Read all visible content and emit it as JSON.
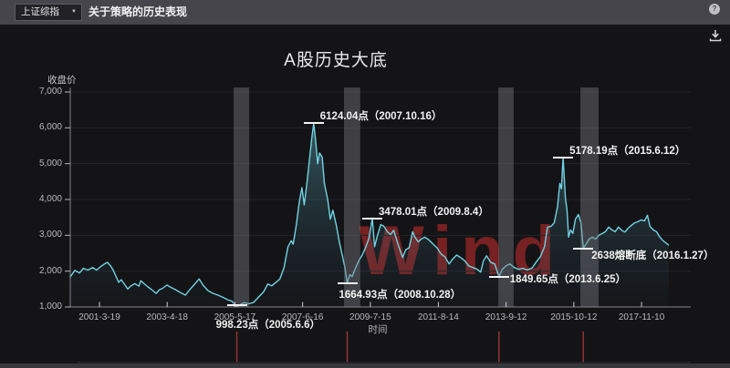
{
  "header": {
    "index_selector": {
      "value": "上证综指",
      "caret": "▼"
    },
    "title": "关于策略的历史表现",
    "help_label": "?"
  },
  "panel": {
    "title": "A股历史大底"
  },
  "chart_data": {
    "type": "line",
    "title": "A股历史大底",
    "ylabel": "收盘价",
    "xlabel": "时间",
    "ylim": [
      1000,
      7000
    ],
    "grid": "horizontal",
    "watermark": "Wind",
    "y_ticks": [
      "1,000",
      "2,000",
      "3,000",
      "4,000",
      "5,000",
      "6,000",
      "7,000"
    ],
    "x_ticks": [
      {
        "label": "2001-3-19",
        "t": 2001.21
      },
      {
        "label": "2003-4-18",
        "t": 2003.29
      },
      {
        "label": "2005-5-17",
        "t": 2005.37
      },
      {
        "label": "2007-6-16",
        "t": 2007.45
      },
      {
        "label": "2009-7-15",
        "t": 2009.53
      },
      {
        "label": "2011-8-14",
        "t": 2011.62
      },
      {
        "label": "2013-9-12",
        "t": 2013.7
      },
      {
        "label": "2015-10-12",
        "t": 2015.78
      },
      {
        "label": "2017-11-10",
        "t": 2017.86
      }
    ],
    "series": [
      {
        "name": "上证综指",
        "color": "#72d2e2",
        "points": [
          [
            2000.3,
            1820
          ],
          [
            2000.45,
            2020
          ],
          [
            2000.6,
            1950
          ],
          [
            2000.72,
            2080
          ],
          [
            2000.85,
            2030
          ],
          [
            2001.0,
            2100
          ],
          [
            2001.12,
            2030
          ],
          [
            2001.25,
            2130
          ],
          [
            2001.38,
            2210
          ],
          [
            2001.45,
            2245
          ],
          [
            2001.55,
            2150
          ],
          [
            2001.62,
            2050
          ],
          [
            2001.72,
            1850
          ],
          [
            2001.8,
            1690
          ],
          [
            2001.88,
            1760
          ],
          [
            2001.97,
            1646
          ],
          [
            2002.08,
            1500
          ],
          [
            2002.18,
            1590
          ],
          [
            2002.3,
            1650
          ],
          [
            2002.42,
            1580
          ],
          [
            2002.48,
            1732
          ],
          [
            2002.58,
            1650
          ],
          [
            2002.7,
            1560
          ],
          [
            2002.82,
            1480
          ],
          [
            2002.95,
            1380
          ],
          [
            2003.05,
            1480
          ],
          [
            2003.15,
            1520
          ],
          [
            2003.28,
            1610
          ],
          [
            2003.4,
            1550
          ],
          [
            2003.55,
            1480
          ],
          [
            2003.7,
            1400
          ],
          [
            2003.85,
            1330
          ],
          [
            2003.95,
            1450
          ],
          [
            2004.1,
            1600
          ],
          [
            2004.27,
            1780
          ],
          [
            2004.4,
            1600
          ],
          [
            2004.55,
            1450
          ],
          [
            2004.7,
            1380
          ],
          [
            2004.85,
            1330
          ],
          [
            2005.0,
            1270
          ],
          [
            2005.15,
            1200
          ],
          [
            2005.28,
            1160
          ],
          [
            2005.43,
            998
          ],
          [
            2005.52,
            1060
          ],
          [
            2005.65,
            1120
          ],
          [
            2005.8,
            1090
          ],
          [
            2005.95,
            1130
          ],
          [
            2006.1,
            1280
          ],
          [
            2006.25,
            1420
          ],
          [
            2006.38,
            1640
          ],
          [
            2006.5,
            1590
          ],
          [
            2006.62,
            1680
          ],
          [
            2006.75,
            1780
          ],
          [
            2006.88,
            2100
          ],
          [
            2007.0,
            2680
          ],
          [
            2007.1,
            2850
          ],
          [
            2007.16,
            2750
          ],
          [
            2007.25,
            3250
          ],
          [
            2007.35,
            3950
          ],
          [
            2007.43,
            4330
          ],
          [
            2007.5,
            3850
          ],
          [
            2007.58,
            4450
          ],
          [
            2007.67,
            5200
          ],
          [
            2007.73,
            5700
          ],
          [
            2007.79,
            6124
          ],
          [
            2007.85,
            5650
          ],
          [
            2007.91,
            5000
          ],
          [
            2007.97,
            5300
          ],
          [
            2008.05,
            5180
          ],
          [
            2008.12,
            4450
          ],
          [
            2008.22,
            4000
          ],
          [
            2008.3,
            3450
          ],
          [
            2008.38,
            3700
          ],
          [
            2008.48,
            3300
          ],
          [
            2008.58,
            2800
          ],
          [
            2008.68,
            2400
          ],
          [
            2008.75,
            2100
          ],
          [
            2008.82,
            1664
          ],
          [
            2008.9,
            1900
          ],
          [
            2008.97,
            1850
          ],
          [
            2009.08,
            2100
          ],
          [
            2009.18,
            2300
          ],
          [
            2009.28,
            2450
          ],
          [
            2009.38,
            2650
          ],
          [
            2009.48,
            2900
          ],
          [
            2009.55,
            3250
          ],
          [
            2009.59,
            3478
          ],
          [
            2009.66,
            2680
          ],
          [
            2009.75,
            3000
          ],
          [
            2009.85,
            3300
          ],
          [
            2009.95,
            3250
          ],
          [
            2010.05,
            3100
          ],
          [
            2010.15,
            3020
          ],
          [
            2010.25,
            3140
          ],
          [
            2010.38,
            2750
          ],
          [
            2010.52,
            2380
          ],
          [
            2010.62,
            2600
          ],
          [
            2010.72,
            2650
          ],
          [
            2010.83,
            3100
          ],
          [
            2010.9,
            2950
          ],
          [
            2011.0,
            2820
          ],
          [
            2011.1,
            2900
          ],
          [
            2011.2,
            2950
          ],
          [
            2011.32,
            2880
          ],
          [
            2011.45,
            2760
          ],
          [
            2011.58,
            2650
          ],
          [
            2011.7,
            2480
          ],
          [
            2011.82,
            2400
          ],
          [
            2011.95,
            2200
          ],
          [
            2012.05,
            2330
          ],
          [
            2012.18,
            2450
          ],
          [
            2012.3,
            2380
          ],
          [
            2012.42,
            2300
          ],
          [
            2012.55,
            2150
          ],
          [
            2012.68,
            2100
          ],
          [
            2012.8,
            2060
          ],
          [
            2012.92,
            1970
          ],
          [
            2013.0,
            2280
          ],
          [
            2013.1,
            2430
          ],
          [
            2013.22,
            2250
          ],
          [
            2013.35,
            2200
          ],
          [
            2013.48,
            1849
          ],
          [
            2013.58,
            2050
          ],
          [
            2013.7,
            2150
          ],
          [
            2013.82,
            2200
          ],
          [
            2013.95,
            2100
          ],
          [
            2014.08,
            2050
          ],
          [
            2014.22,
            2080
          ],
          [
            2014.35,
            2030
          ],
          [
            2014.5,
            2090
          ],
          [
            2014.62,
            2250
          ],
          [
            2014.75,
            2400
          ],
          [
            2014.88,
            2680
          ],
          [
            2014.97,
            3230
          ],
          [
            2015.08,
            3250
          ],
          [
            2015.18,
            3350
          ],
          [
            2015.28,
            3800
          ],
          [
            2015.35,
            4450
          ],
          [
            2015.4,
            4300
          ],
          [
            2015.45,
            5178
          ],
          [
            2015.52,
            4050
          ],
          [
            2015.57,
            3700
          ],
          [
            2015.62,
            2950
          ],
          [
            2015.68,
            3150
          ],
          [
            2015.75,
            3050
          ],
          [
            2015.83,
            3450
          ],
          [
            2015.92,
            3580
          ],
          [
            2016.0,
            3350
          ],
          [
            2016.07,
            2638
          ],
          [
            2016.15,
            2750
          ],
          [
            2016.25,
            2900
          ],
          [
            2016.35,
            2950
          ],
          [
            2016.45,
            2900
          ],
          [
            2016.55,
            3000
          ],
          [
            2016.65,
            3050
          ],
          [
            2016.75,
            3100
          ],
          [
            2016.85,
            3230
          ],
          [
            2016.95,
            3150
          ],
          [
            2017.05,
            3100
          ],
          [
            2017.15,
            3230
          ],
          [
            2017.25,
            3140
          ],
          [
            2017.35,
            3090
          ],
          [
            2017.45,
            3200
          ],
          [
            2017.55,
            3280
          ],
          [
            2017.65,
            3350
          ],
          [
            2017.75,
            3380
          ],
          [
            2017.85,
            3430
          ],
          [
            2017.95,
            3400
          ],
          [
            2018.04,
            3560
          ],
          [
            2018.12,
            3250
          ],
          [
            2018.22,
            3150
          ],
          [
            2018.32,
            3100
          ],
          [
            2018.42,
            2950
          ],
          [
            2018.52,
            2850
          ],
          [
            2018.62,
            2780
          ],
          [
            2018.7,
            2720
          ]
        ]
      }
    ],
    "annotations": [
      {
        "text": "6124.04点（2007.10.16）",
        "t": 2007.79,
        "value": 6124.04,
        "placement": "right-up"
      },
      {
        "text": "3478.01点（2009.8.4）",
        "t": 2009.59,
        "value": 3478.01,
        "placement": "right-up"
      },
      {
        "text": "5178.19点（2015.6.12）",
        "t": 2015.45,
        "value": 5178.19,
        "placement": "right-up"
      },
      {
        "text": "1664.93点（2008.10.28）",
        "t": 2008.82,
        "value": 1664.93,
        "placement": "below-left"
      },
      {
        "text": "1849.65点（2013.6.25）",
        "t": 2013.48,
        "value": 1849.65,
        "placement": "right"
      },
      {
        "text": "2638熔断底（2016.1.27）",
        "t": 2016.07,
        "value": 2638.0,
        "placement": "right-down"
      },
      {
        "text": "998.23点（2005.6.6）",
        "t": 2005.43,
        "value": 998.23,
        "placement": "below-center"
      }
    ],
    "highlight_bands": [
      {
        "t0": 2005.33,
        "t1": 2005.81
      },
      {
        "t0": 2008.72,
        "t1": 2009.22
      },
      {
        "t0": 2013.46,
        "t1": 2013.93
      },
      {
        "t0": 2015.98,
        "t1": 2016.54
      }
    ],
    "event_lines_t": [
      2005.43,
      2008.82,
      2013.48,
      2016.07
    ]
  }
}
